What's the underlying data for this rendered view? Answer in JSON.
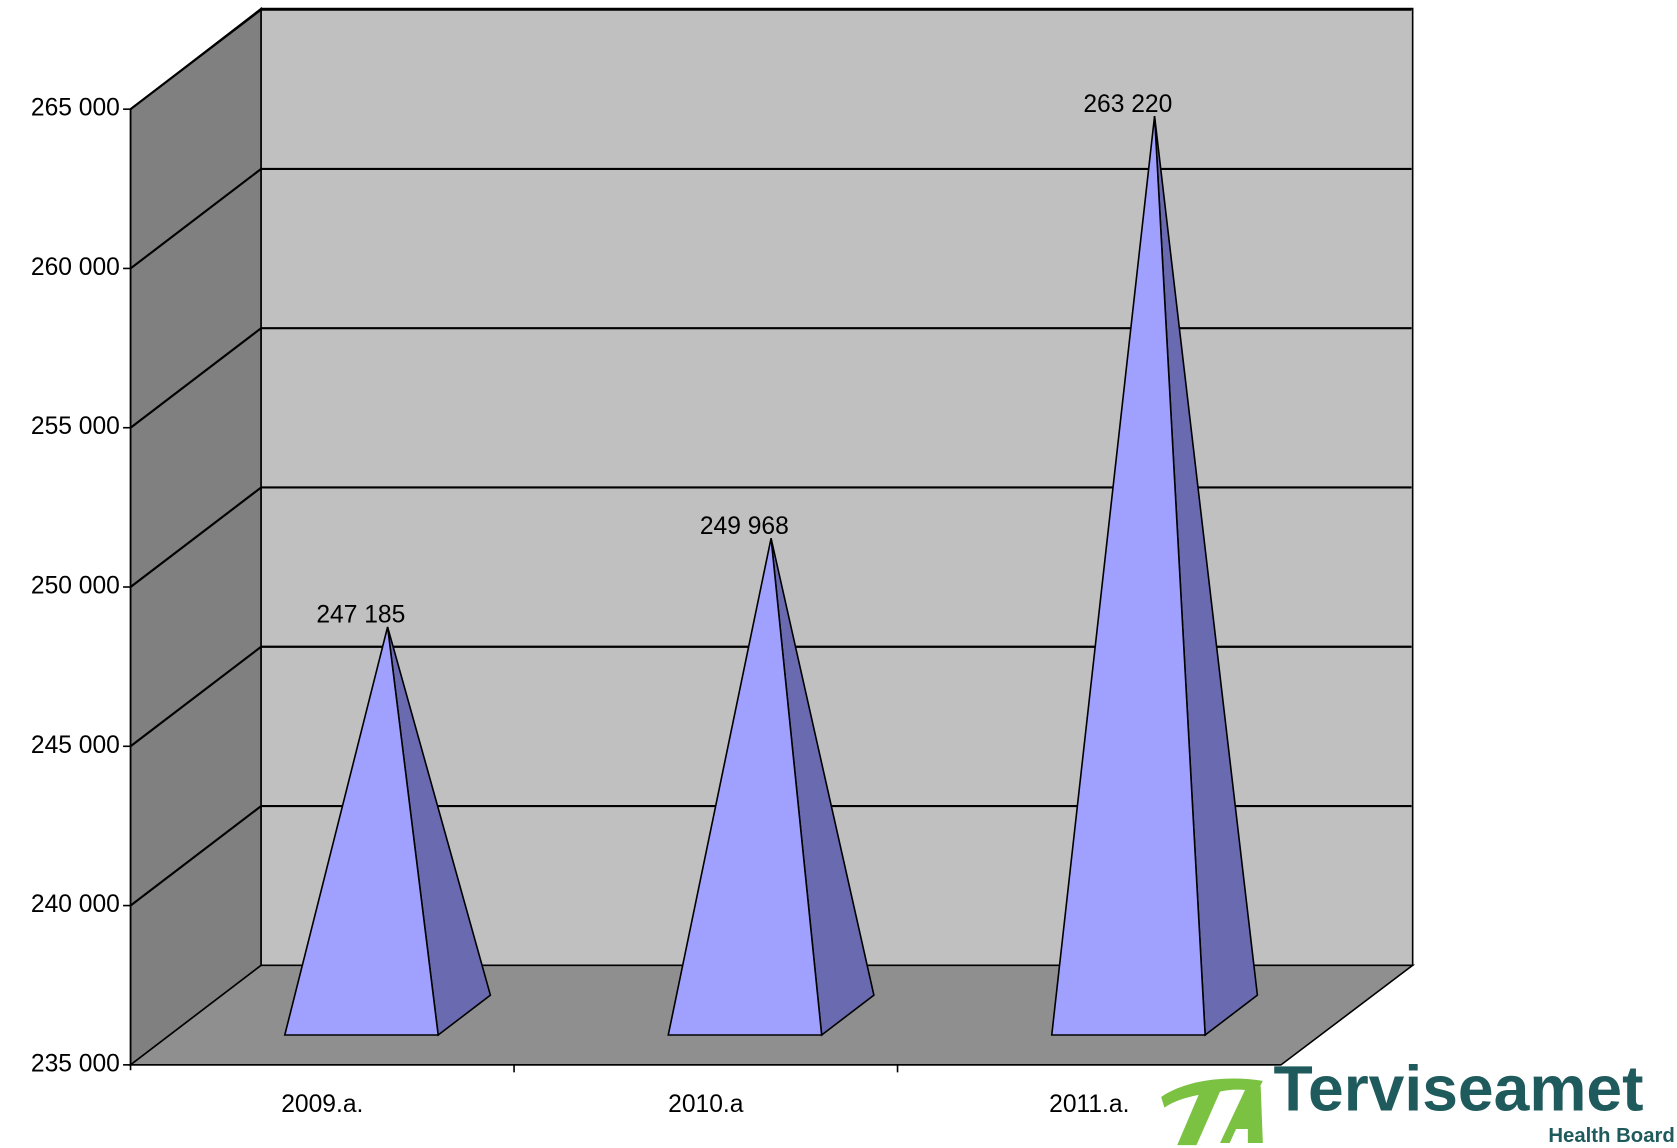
{
  "chart_data": {
    "type": "pyramid",
    "categories": [
      "2009.a.",
      "2010.a",
      "2011.a."
    ],
    "values": [
      247185,
      249968,
      263220
    ],
    "value_labels": [
      "247 185",
      "249 968",
      "263 220"
    ],
    "color": "#a0a0ff",
    "ylim": [
      235000,
      265000
    ],
    "yticks": [
      {
        "value": 235000,
        "label": "235 000"
      },
      {
        "value": 240000,
        "label": "240 000"
      },
      {
        "value": 245000,
        "label": "245 000"
      },
      {
        "value": 250000,
        "label": "250 000"
      },
      {
        "value": 255000,
        "label": "255 000"
      },
      {
        "value": 260000,
        "label": "260 000"
      },
      {
        "value": 265000,
        "label": "265 000"
      }
    ],
    "grid": true
  },
  "logo": {
    "name": "Terviseamet",
    "subtitle": "Health Board"
  }
}
